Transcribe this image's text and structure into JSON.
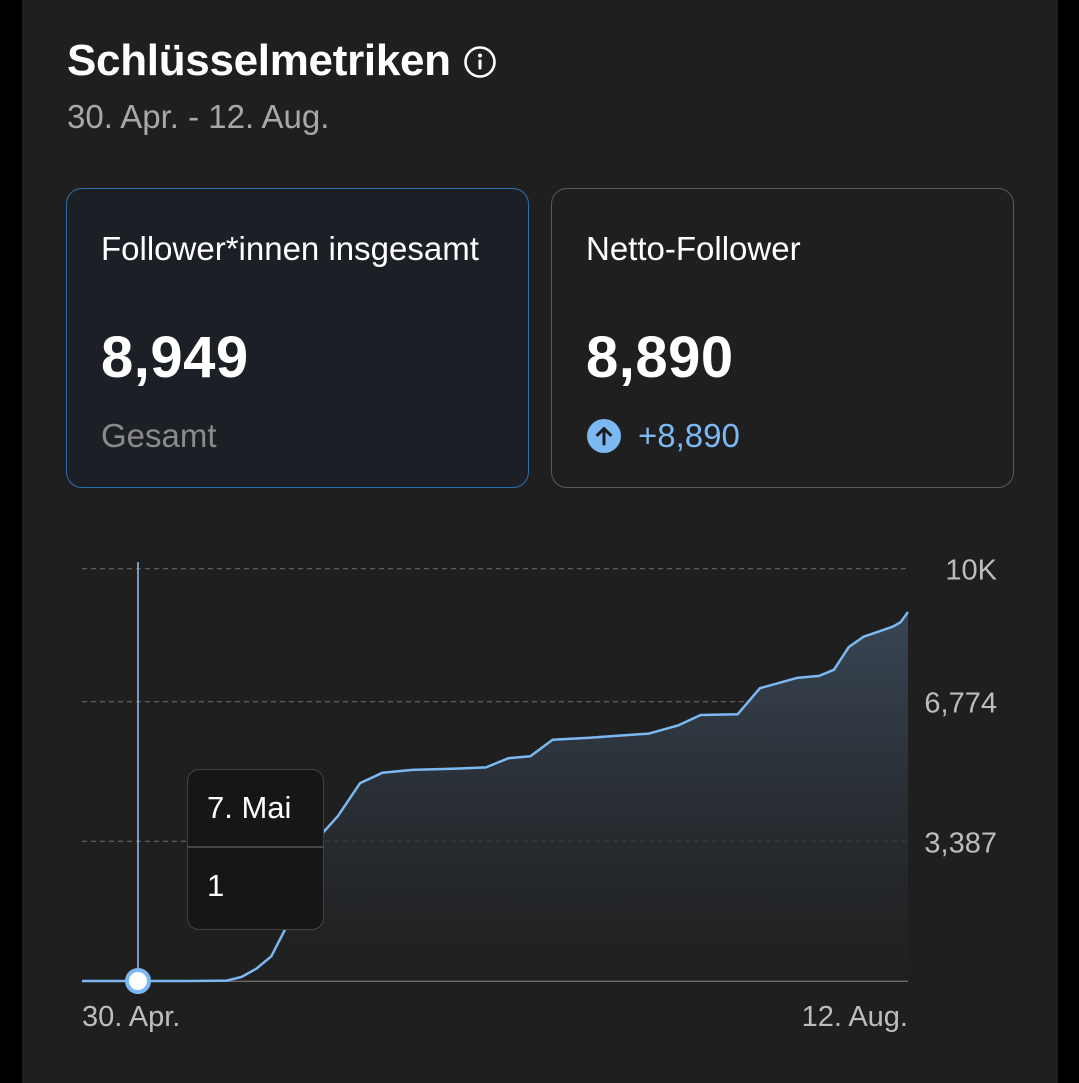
{
  "header": {
    "title": "Schlüsselmetriken",
    "date_range": "30. Apr. - 12. Aug."
  },
  "cards": {
    "total": {
      "label": "Follower*innen insgesamt",
      "value": "8,949",
      "sub": "Gesamt",
      "selected": true
    },
    "net": {
      "label": "Netto-Follower",
      "value": "8,890",
      "delta": "+8,890"
    }
  },
  "colors": {
    "accent": "#7cb8f2",
    "selected_border": "#2d6fae",
    "background": "#1f1f1f"
  },
  "icons": {
    "info": "info-icon",
    "delta": "arrow-up-circle-icon"
  },
  "tooltip": {
    "date": "7. Mai",
    "value": "1"
  },
  "chart_data": {
    "type": "area",
    "series_name": "",
    "y_ticks": [
      "10K",
      "6,774",
      "3,387"
    ],
    "ylim": [
      0,
      10161
    ],
    "x_start_label": "30. Apr.",
    "x_end_label": "12. Aug.",
    "x_range": [
      "2024-04-30",
      "2024-08-12"
    ],
    "points": [
      [
        "2024-04-30",
        0
      ],
      [
        "2024-05-07",
        1
      ],
      [
        "2024-05-12",
        10
      ],
      [
        "2024-05-14",
        100
      ],
      [
        "2024-05-16",
        300
      ],
      [
        "2024-05-18",
        600
      ],
      [
        "2024-05-20",
        1300
      ],
      [
        "2024-05-22",
        2400
      ],
      [
        "2024-05-24",
        3400
      ],
      [
        "2024-05-27",
        4000
      ],
      [
        "2024-05-30",
        4800
      ],
      [
        "2024-06-02",
        5050
      ],
      [
        "2024-06-06",
        5120
      ],
      [
        "2024-06-12",
        5150
      ],
      [
        "2024-06-16",
        5180
      ],
      [
        "2024-06-19",
        5400
      ],
      [
        "2024-06-22",
        5450
      ],
      [
        "2024-06-25",
        5850
      ],
      [
        "2024-06-30",
        5900
      ],
      [
        "2024-07-04",
        5950
      ],
      [
        "2024-07-08",
        6000
      ],
      [
        "2024-07-12",
        6200
      ],
      [
        "2024-07-15",
        6450
      ],
      [
        "2024-07-20",
        6470
      ],
      [
        "2024-07-23",
        7100
      ],
      [
        "2024-07-28",
        7350
      ],
      [
        "2024-07-31",
        7400
      ],
      [
        "2024-08-02",
        7550
      ],
      [
        "2024-08-04",
        8100
      ],
      [
        "2024-08-06",
        8350
      ],
      [
        "2024-08-08",
        8470
      ],
      [
        "2024-08-10",
        8600
      ],
      [
        "2024-08-11",
        8700
      ],
      [
        "2024-08-12",
        8949
      ]
    ],
    "highlighted_point": [
      "2024-04-30",
      0
    ],
    "grid": true
  }
}
